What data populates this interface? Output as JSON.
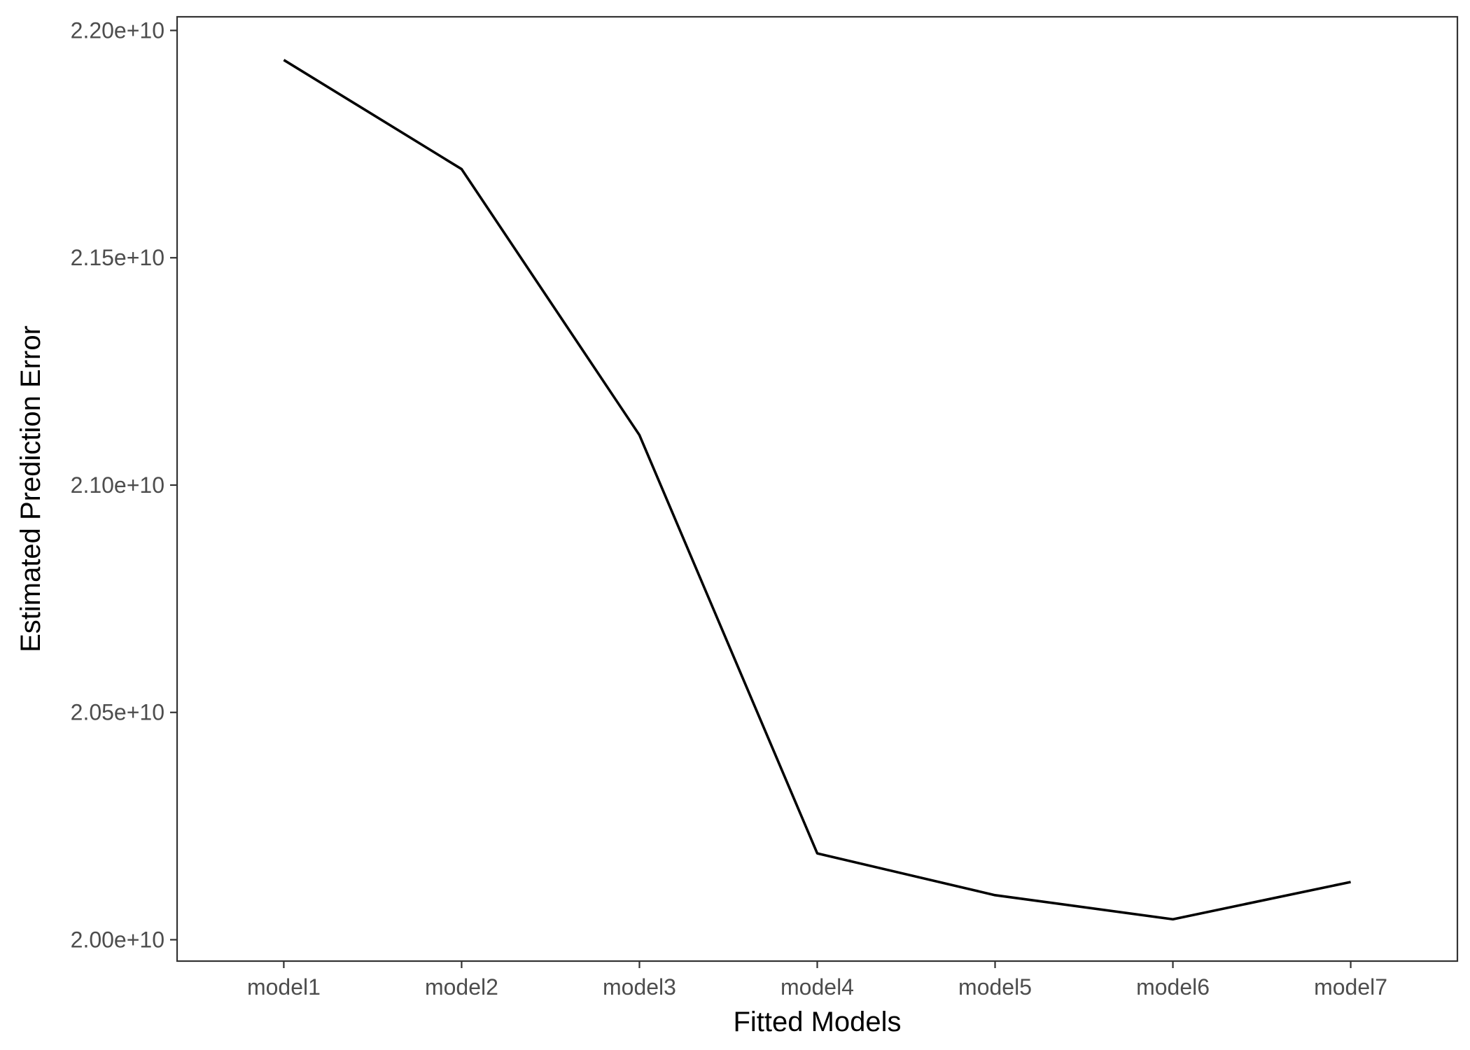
{
  "chart_data": {
    "type": "line",
    "title": "",
    "xlabel": "Fitted Models",
    "ylabel": "Estimated Prediction Error",
    "categories": [
      "model1",
      "model2",
      "model3",
      "model4",
      "model5",
      "model6",
      "model7"
    ],
    "series": [
      {
        "values": [
          21935000000,
          21695000000,
          21110000000,
          20190000000,
          20098000000,
          20045000000,
          20127000000
        ]
      }
    ],
    "ylim": [
      19953000000,
      22030000000
    ],
    "yticks": [
      20000000000,
      20500000000,
      21000000000,
      21500000000,
      22000000000
    ],
    "ytick_labels": [
      "2.00e+10",
      "2.05e+10",
      "2.10e+10",
      "2.15e+10",
      "2.20e+10"
    ],
    "line_color": "#000000",
    "grid": false,
    "legend": "none"
  }
}
